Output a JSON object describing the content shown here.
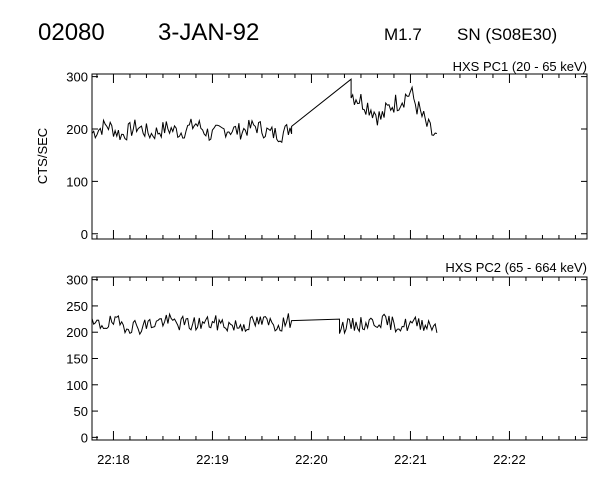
{
  "header": {
    "event_id": "02080",
    "date": "3-JAN-92",
    "flare_class": "M1.7",
    "location": "SN (S08E30)"
  },
  "colors": {
    "ink": "#000000",
    "background": "#ffffff"
  },
  "chart_data": [
    {
      "type": "line",
      "title": "HXS PC1 (20 - 65 keV)",
      "ylabel": "CTS/SEC",
      "xlabel": "",
      "ylim": [
        -10,
        305
      ],
      "xlim": [
        "22:17:47",
        "22:22:47"
      ],
      "yticks": [
        0,
        100,
        200,
        300
      ],
      "ytick_labels": [
        "0",
        "100",
        "200",
        "300"
      ],
      "grid": false,
      "segments": [
        {
          "x": [
            "22:17:47",
            "22:17:56",
            "22:18:05",
            "22:18:14",
            "22:18:23",
            "22:18:32",
            "22:18:41",
            "22:18:50",
            "22:18:59",
            "22:19:08",
            "22:19:17",
            "22:19:26",
            "22:19:35",
            "22:19:42",
            "22:19:48"
          ],
          "y": [
            192,
            208,
            188,
            205,
            190,
            202,
            194,
            210,
            188,
            200,
            196,
            206,
            192,
            190,
            205
          ],
          "noise": 16
        },
        {
          "x": [
            "22:19:48",
            "22:20:24"
          ],
          "y": [
            205,
            295
          ],
          "noise": 0
        },
        {
          "x": [
            "22:20:24",
            "22:20:30",
            "22:20:36",
            "22:20:42",
            "22:20:48",
            "22:20:54",
            "22:21:00",
            "22:21:06",
            "22:21:11",
            "22:21:16"
          ],
          "y": [
            268,
            255,
            240,
            220,
            245,
            255,
            270,
            230,
            200,
            180
          ],
          "noise": 20
        }
      ]
    },
    {
      "type": "line",
      "title": "HXS PC2 (65 - 664 keV)",
      "ylabel": "",
      "xlabel": "",
      "ylim": [
        -5,
        305
      ],
      "xlim": [
        "22:17:47",
        "22:22:47"
      ],
      "yticks": [
        0,
        50,
        100,
        150,
        200,
        250,
        300
      ],
      "ytick_labels": [
        "0",
        "50",
        "100",
        "150",
        "200",
        "250",
        "300"
      ],
      "grid": false,
      "xtick_labels": [
        "22:18",
        "22:19",
        "22:20",
        "22:21",
        "22:22"
      ],
      "xtick_values": [
        "22:18:00",
        "22:19:00",
        "22:20:00",
        "22:21:00",
        "22:22:00"
      ],
      "segments": [
        {
          "x": [
            "22:17:47",
            "22:18:00",
            "22:18:15",
            "22:18:30",
            "22:18:45",
            "22:19:00",
            "22:19:15",
            "22:19:30",
            "22:19:40",
            "22:19:47"
          ],
          "y": [
            212,
            218,
            210,
            222,
            215,
            218,
            212,
            220,
            214,
            222
          ],
          "noise": 15
        },
        {
          "x": [
            "22:19:48",
            "22:20:17"
          ],
          "y": [
            222,
            225
          ],
          "noise": 0
        },
        {
          "x": [
            "22:20:17",
            "22:20:30",
            "22:20:42",
            "22:20:54",
            "22:21:06",
            "22:21:16"
          ],
          "y": [
            210,
            215,
            222,
            212,
            218,
            212
          ],
          "noise": 14
        }
      ]
    }
  ]
}
